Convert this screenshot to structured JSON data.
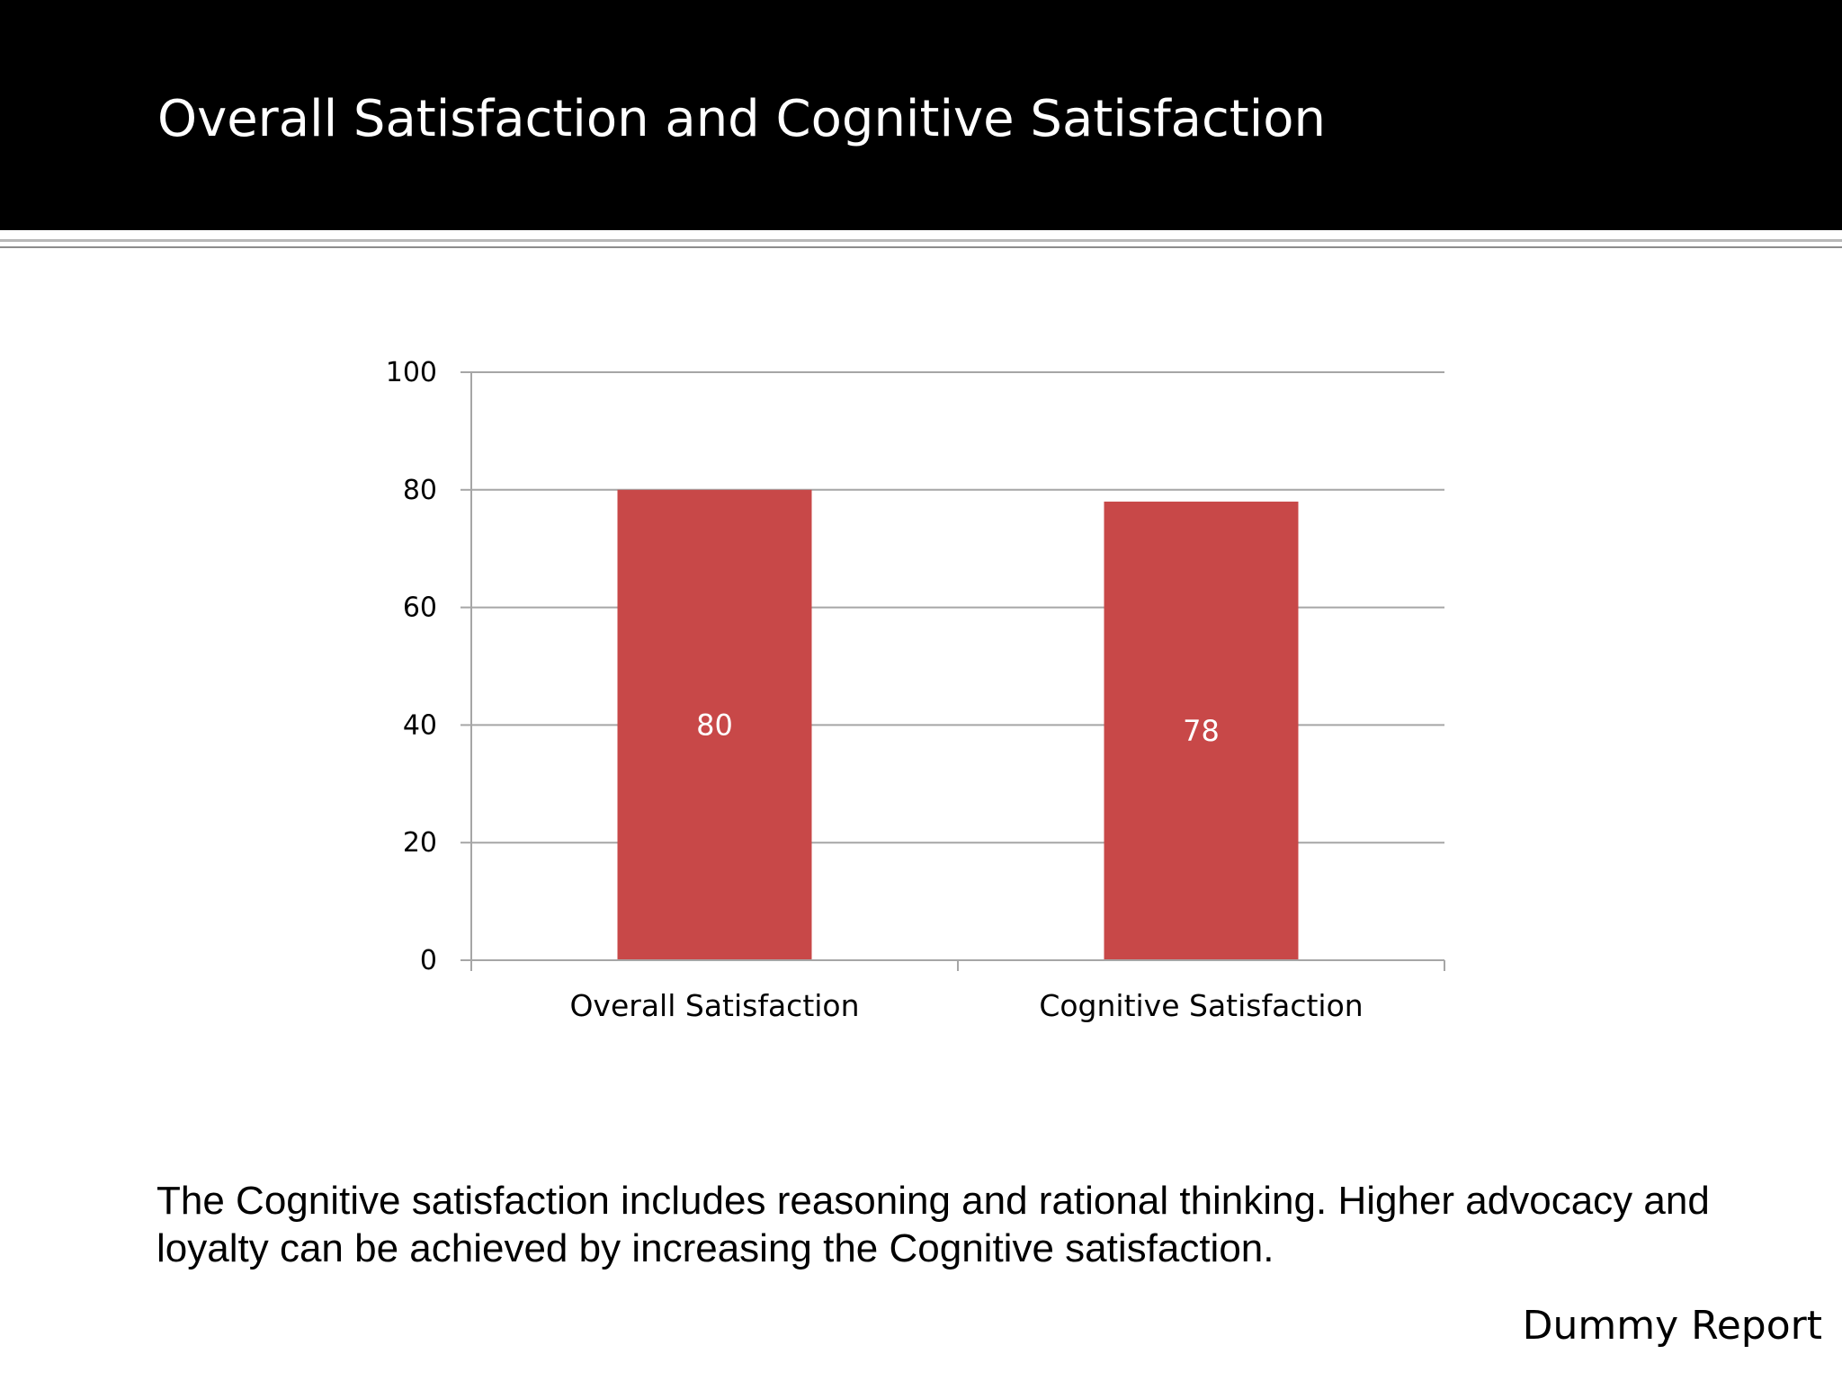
{
  "slide": {
    "title": "Overall Satisfaction and Cognitive Satisfaction",
    "body_text": "The Cognitive satisfaction includes reasoning and rational thinking. Higher advocacy and loyalty can be achieved by increasing the Cognitive satisfaction.",
    "footer": "Dummy Report"
  },
  "colors": {
    "header_background": "#000000",
    "bar": "#c84848",
    "gridline": "#a6a6a6",
    "axis": "#a6a6a6"
  },
  "chart_data": {
    "type": "bar",
    "categories": [
      "Overall Satisfaction",
      "Cognitive Satisfaction"
    ],
    "values": [
      80,
      78
    ],
    "data_labels": [
      "80",
      "78"
    ],
    "yticks": [
      "0",
      "20",
      "40",
      "60",
      "80",
      "100"
    ],
    "ylim": [
      0,
      100
    ],
    "title": "",
    "xlabel": "",
    "ylabel": "",
    "grid": true,
    "legend": "none"
  }
}
